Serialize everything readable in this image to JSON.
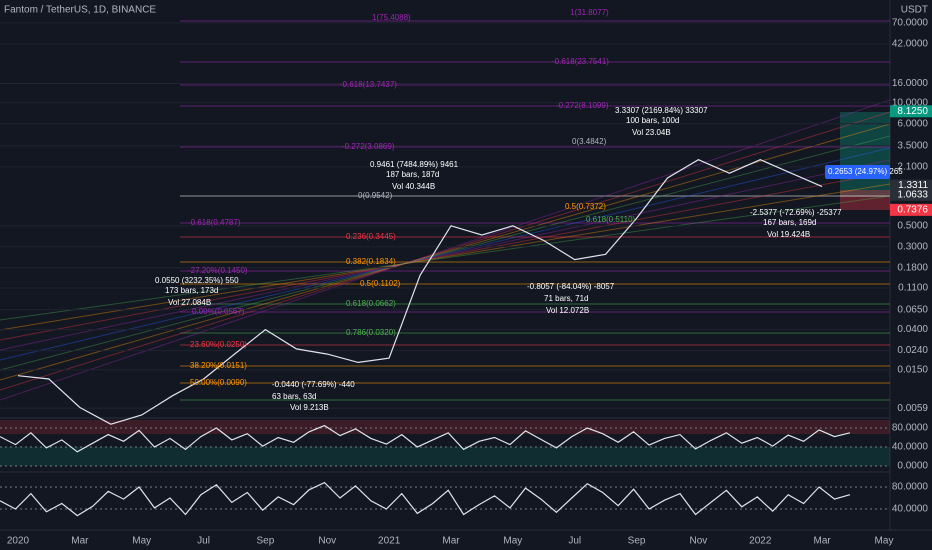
{
  "chart_data": [
    {
      "type": "line",
      "title": "Fantom / TetherUS, 1D, BINANCE",
      "y_label": "USDT",
      "log_scale": true,
      "grid": true,
      "color": "#e0e3eb",
      "categories": [
        "2020",
        null,
        "Mar",
        null,
        "May",
        null,
        "Jul",
        null,
        "Sep",
        null,
        "Nov",
        null,
        "2021",
        null,
        "Mar",
        null,
        "May",
        null,
        "Jul",
        null,
        "Sep",
        null,
        "Nov",
        null,
        "2022",
        null,
        "Mar",
        null,
        "May"
      ],
      "values": [
        0.013,
        0.012,
        0.006,
        0.004,
        0.005,
        0.008,
        0.012,
        0.022,
        0.04,
        0.025,
        0.022,
        0.018,
        0.02,
        0.15,
        0.5,
        0.4,
        0.5,
        0.35,
        0.22,
        0.25,
        0.6,
        1.6,
        2.5,
        1.8,
        2.5,
        1.8,
        1.3,
        null,
        null
      ],
      "ylim": [
        0.005,
        75
      ],
      "yticks": [
        {
          "value": 70,
          "label": "70.0000"
        },
        {
          "value": 42,
          "label": "42.0000"
        },
        {
          "value": 16,
          "label": "16.0000"
        },
        {
          "value": 10,
          "label": "10.0000"
        },
        {
          "value": 6,
          "label": "6.0000"
        },
        {
          "value": 3.5,
          "label": "3.5000"
        },
        {
          "value": 2.1,
          "label": "2.1000"
        },
        {
          "value": 0.5,
          "label": "0.5000"
        },
        {
          "value": 0.3,
          "label": "0.3000"
        },
        {
          "value": 0.18,
          "label": "0.1800"
        },
        {
          "value": 0.11,
          "label": "0.1100"
        },
        {
          "value": 0.065,
          "label": "0.0650"
        },
        {
          "value": 0.04,
          "label": "0.0400"
        },
        {
          "value": 0.024,
          "label": "0.0240"
        },
        {
          "value": 0.015,
          "label": "0.0150"
        },
        {
          "value": 0.0059,
          "label": "0.0059"
        }
      ],
      "price_labels": [
        {
          "value": 8.125,
          "label": "8.1250",
          "color": "#089981"
        },
        {
          "value": 1.3311,
          "label": "1.3311",
          "color": "#2a2e39"
        },
        {
          "value": 1.0633,
          "label": "1.0633",
          "color": "#2a2e39"
        },
        {
          "value": 0.7376,
          "label": "0.7376",
          "color": "#f23645"
        }
      ],
      "annotations": [
        "1(75.4088)",
        "1(31.8077)",
        "-0.618(23.7541)",
        "-0.618(13.7437)",
        "-0.272(8.1099)",
        "3.3307 (2169.84%) 33307",
        "100 bars, 100d",
        "Vol 23.04B",
        "0(3.4842)",
        "-0.272(3.0869)",
        "0.9461 (7484.89%) 9461",
        "187 bars, 187d",
        "Vol 40.344B",
        "0(0.9542)",
        "-0.618(0.4787)",
        "0.236(0.3445)",
        "0.382(0.1834)",
        "-27.20%(0.1450)",
        "0.0550 (3232.35%) 550",
        "173 bars, 173d",
        "Vol 27.084B",
        "0.5(0.1102)",
        "0.618(0.0662)",
        "0.00%(0.0567)",
        "0.786(0.0320)",
        "23.60%(0.0250)",
        "38.20%(0.0151)",
        "50.00%(0.0090)",
        "-0.0440 (-77.69%) -440",
        "63 bars, 63d",
        "Vol 9.213B",
        "-0.8057 (-84.04%) -8057",
        "71 bars, 71d",
        "Vol 12.072B",
        "0.5(0.7372)",
        "0.618(0.5110)",
        "-2.5377 (-72.69%) -25377",
        "167 bars, 169d",
        "Vol 19.424B",
        "0.2653 (24.97%) 265"
      ]
    },
    {
      "type": "line",
      "color": "#e0e3eb",
      "ylim": [
        0,
        100
      ],
      "yticks": [
        {
          "value": 80,
          "label": "80.0000"
        },
        {
          "value": 40,
          "label": "40.0000"
        },
        {
          "value": 0,
          "label": "0.0000"
        }
      ],
      "values": [
        62,
        45,
        70,
        38,
        55,
        30,
        48,
        66,
        52,
        75,
        40,
        58,
        35,
        62,
        80,
        55,
        68,
        42,
        60,
        50,
        72,
        85,
        64,
        78,
        58,
        46,
        66,
        40,
        55,
        70,
        35,
        52,
        60,
        45,
        74,
        56,
        38,
        62,
        80,
        68,
        50,
        72,
        44,
        58,
        66,
        36,
        54,
        70,
        48,
        60,
        42,
        65,
        52,
        76,
        62,
        70
      ]
    },
    {
      "type": "line",
      "color": "#e0e3eb",
      "ylim": [
        20,
        100
      ],
      "yticks": [
        {
          "value": 80,
          "label": "80.0000"
        },
        {
          "value": 40,
          "label": "40.0000"
        }
      ],
      "values": [
        55,
        40,
        68,
        35,
        50,
        28,
        45,
        72,
        58,
        80,
        42,
        60,
        30,
        66,
        84,
        52,
        70,
        38,
        62,
        48,
        75,
        88,
        60,
        82,
        55,
        40,
        68,
        32,
        50,
        74,
        30,
        48,
        64,
        42,
        78,
        58,
        34,
        60,
        86,
        70,
        46,
        76,
        40,
        56,
        68,
        30,
        52,
        74,
        44,
        62,
        36,
        66,
        50,
        80,
        58,
        66
      ]
    }
  ]
}
